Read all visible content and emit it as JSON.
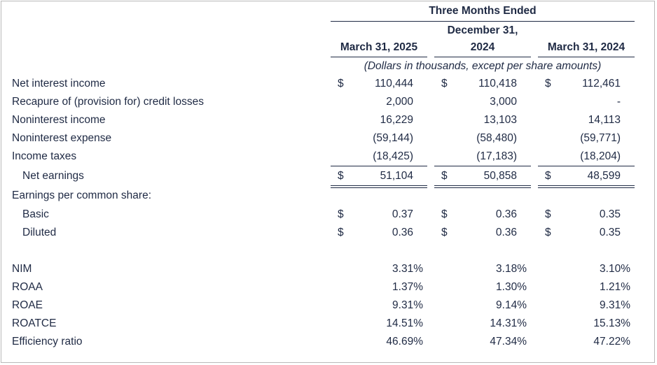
{
  "header": {
    "span_title": "Three Months Ended",
    "columns": [
      {
        "line1": "",
        "line2": "March 31, 2025"
      },
      {
        "line1": "December 31,",
        "line2": "2024"
      },
      {
        "line1": "",
        "line2": "March 31, 2024"
      }
    ],
    "units_note": "(Dollars in thousands, except per share amounts)"
  },
  "currency_symbol": "$",
  "rows": [
    {
      "label": "Net interest income",
      "values": [
        "110,444",
        "110,418",
        "112,461"
      ]
    },
    {
      "label": "Recapure of (provision for) credit losses",
      "values": [
        "2,000",
        "3,000",
        "-"
      ]
    },
    {
      "label": "Noninterest income",
      "values": [
        "16,229",
        "13,103",
        "14,113"
      ]
    },
    {
      "label": "Noninterest expense",
      "values": [
        "(59,144)",
        "(58,480)",
        "(59,771)"
      ]
    },
    {
      "label": "Income taxes",
      "values": [
        "(18,425)",
        "(17,183)",
        "(18,204)"
      ]
    },
    {
      "label": "Net earnings",
      "values": [
        "51,104",
        "50,858",
        "48,599"
      ]
    }
  ],
  "eps": {
    "heading": "Earnings per common share:",
    "rows": [
      {
        "label": "Basic",
        "values": [
          "0.37",
          "0.36",
          "0.35"
        ]
      },
      {
        "label": "Diluted",
        "values": [
          "0.36",
          "0.36",
          "0.35"
        ]
      }
    ]
  },
  "ratios": [
    {
      "label": "NIM",
      "values": [
        "3.31%",
        "3.18%",
        "3.10%"
      ]
    },
    {
      "label": "ROAA",
      "values": [
        "1.37%",
        "1.30%",
        "1.21%"
      ]
    },
    {
      "label": "ROAE",
      "values": [
        "9.31%",
        "9.14%",
        "9.31%"
      ]
    },
    {
      "label": "ROATCE",
      "values": [
        "14.51%",
        "14.31%",
        "15.13%"
      ]
    },
    {
      "label": "Efficiency ratio",
      "values": [
        "46.69%",
        "47.34%",
        "47.22%"
      ]
    }
  ]
}
